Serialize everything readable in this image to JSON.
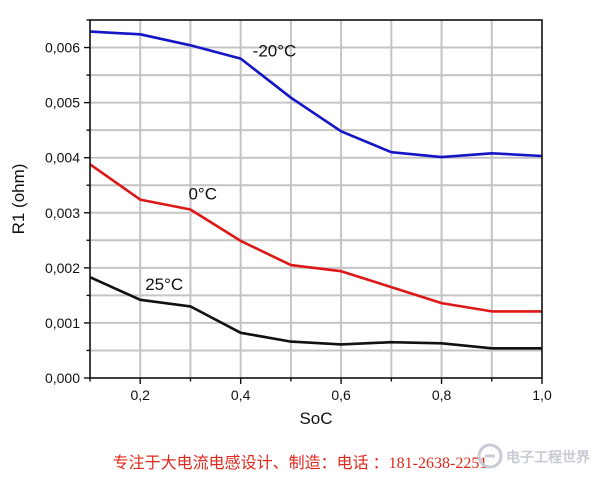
{
  "chart_data": {
    "type": "line",
    "xlabel": "SoC",
    "ylabel": "R1 (ohm)",
    "xlim": [
      0.1,
      1.0
    ],
    "ylim": [
      0.0,
      0.0065
    ],
    "xticks": [
      0.2,
      0.4,
      0.6,
      0.8,
      1.0
    ],
    "xtick_labels": [
      "0,2",
      "0,4",
      "0,6",
      "0,8",
      "1,0"
    ],
    "yticks": [
      0.0,
      0.001,
      0.002,
      0.003,
      0.004,
      0.005,
      0.006
    ],
    "ytick_labels": [
      "0,000",
      "0,001",
      "0,002",
      "0,003",
      "0,004",
      "0,005",
      "0,006"
    ],
    "grid": true,
    "x": [
      0.1,
      0.2,
      0.3,
      0.4,
      0.5,
      0.6,
      0.7,
      0.8,
      0.9,
      1.0
    ],
    "series": [
      {
        "name": "-20°C",
        "color": "#1515c8",
        "values": [
          0.00629,
          0.00624,
          0.00604,
          0.0058,
          0.00509,
          0.00448,
          0.0041,
          0.00401,
          0.00408,
          0.00403
        ]
      },
      {
        "name": "0°C",
        "color": "#dd1818",
        "values": [
          0.00388,
          0.00324,
          0.00306,
          0.00249,
          0.00205,
          0.00194,
          0.00165,
          0.00136,
          0.00121,
          0.00121
        ]
      },
      {
        "name": "25°C",
        "color": "#111111",
        "values": [
          0.00183,
          0.00142,
          0.0013,
          0.00082,
          0.00066,
          0.00061,
          0.00065,
          0.00063,
          0.00054,
          0.00054
        ]
      }
    ]
  },
  "footer_text": "专注于大电流电感设计、制造：电话 ：181-2638-2251",
  "watermark": {
    "text": "电子工程世界",
    "color": "#c8ccd4"
  }
}
